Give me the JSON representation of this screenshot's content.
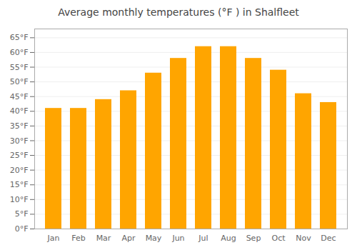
{
  "chart_data": {
    "type": "bar",
    "title": "Average monthly temperatures (°F ) in Shalfleet",
    "categories": [
      "Jan",
      "Feb",
      "Mar",
      "Apr",
      "May",
      "Jun",
      "Jul",
      "Aug",
      "Sep",
      "Oct",
      "Nov",
      "Dec"
    ],
    "values": [
      41,
      41,
      44,
      47,
      53,
      58,
      62,
      62,
      58,
      54,
      46,
      43
    ],
    "color": "#FFA500",
    "ylim": [
      0,
      68
    ],
    "yticks": [
      {
        "value": 0,
        "label": "0°F"
      },
      {
        "value": 5,
        "label": "5°F"
      },
      {
        "value": 10,
        "label": "10°F"
      },
      {
        "value": 15,
        "label": "15°F"
      },
      {
        "value": 20,
        "label": "20°F"
      },
      {
        "value": 25,
        "label": "25°F"
      },
      {
        "value": 30,
        "label": "30°F"
      },
      {
        "value": 35,
        "label": "35°F"
      },
      {
        "value": 40,
        "label": "40°F"
      },
      {
        "value": 45,
        "label": "45°F"
      },
      {
        "value": 50,
        "label": "50°F"
      },
      {
        "value": 55,
        "label": "55°F"
      },
      {
        "value": 60,
        "label": "60°F"
      },
      {
        "value": 65,
        "label": "65°F"
      }
    ],
    "grid": true
  }
}
